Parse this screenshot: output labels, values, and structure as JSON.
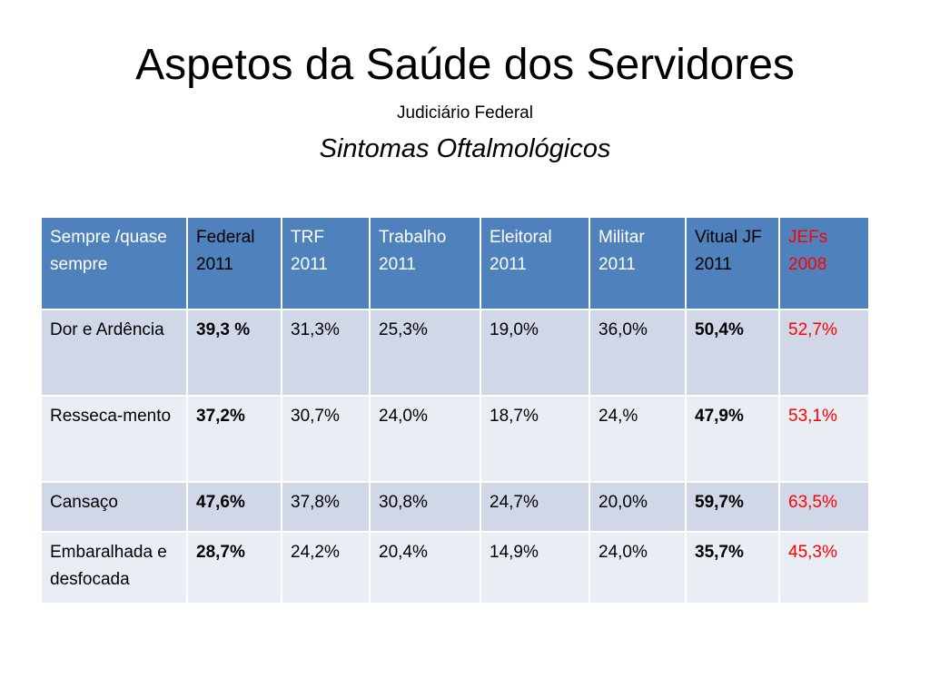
{
  "slide": {
    "title": "Aspetos da Saúde dos Servidores",
    "subtitle": "Judiciário Federal",
    "subtitle2": "Sintomas Oftalmológicos"
  },
  "table": {
    "headers": [
      "Sempre /quase sempre",
      "Federal 2011",
      "TRF 2011",
      "Trabalho 2011",
      "Eleitoral 2011",
      "Militar 2011",
      "Vitual JF 2011",
      "JEFs 2008"
    ],
    "rows": [
      [
        "Dor e Ardência",
        "39,3 %",
        "31,3%",
        "25,3%",
        "19,0%",
        "36,0%",
        "50,4%",
        "52,7%"
      ],
      [
        "Resseca-mento",
        "37,2%",
        "30,7%",
        "24,0%",
        "18,7%",
        "24,%",
        "47,9%",
        "53,1%"
      ],
      [
        "Cansaço",
        "47,6%",
        "37,8%",
        "30,8%",
        "24,7%",
        "20,0%",
        "59,7%",
        "63,5%"
      ],
      [
        "Embaralhada e desfocada",
        "28,7%",
        "24,2%",
        "20,4%",
        "14,9%",
        "24,0%",
        "35,7%",
        "45,3%"
      ]
    ]
  },
  "colors": {
    "header_fill": "#4f81bd",
    "row_odd_fill": "#d0d8e8",
    "row_even_fill": "#e9edf4",
    "highlight_red": "#ff0000"
  }
}
